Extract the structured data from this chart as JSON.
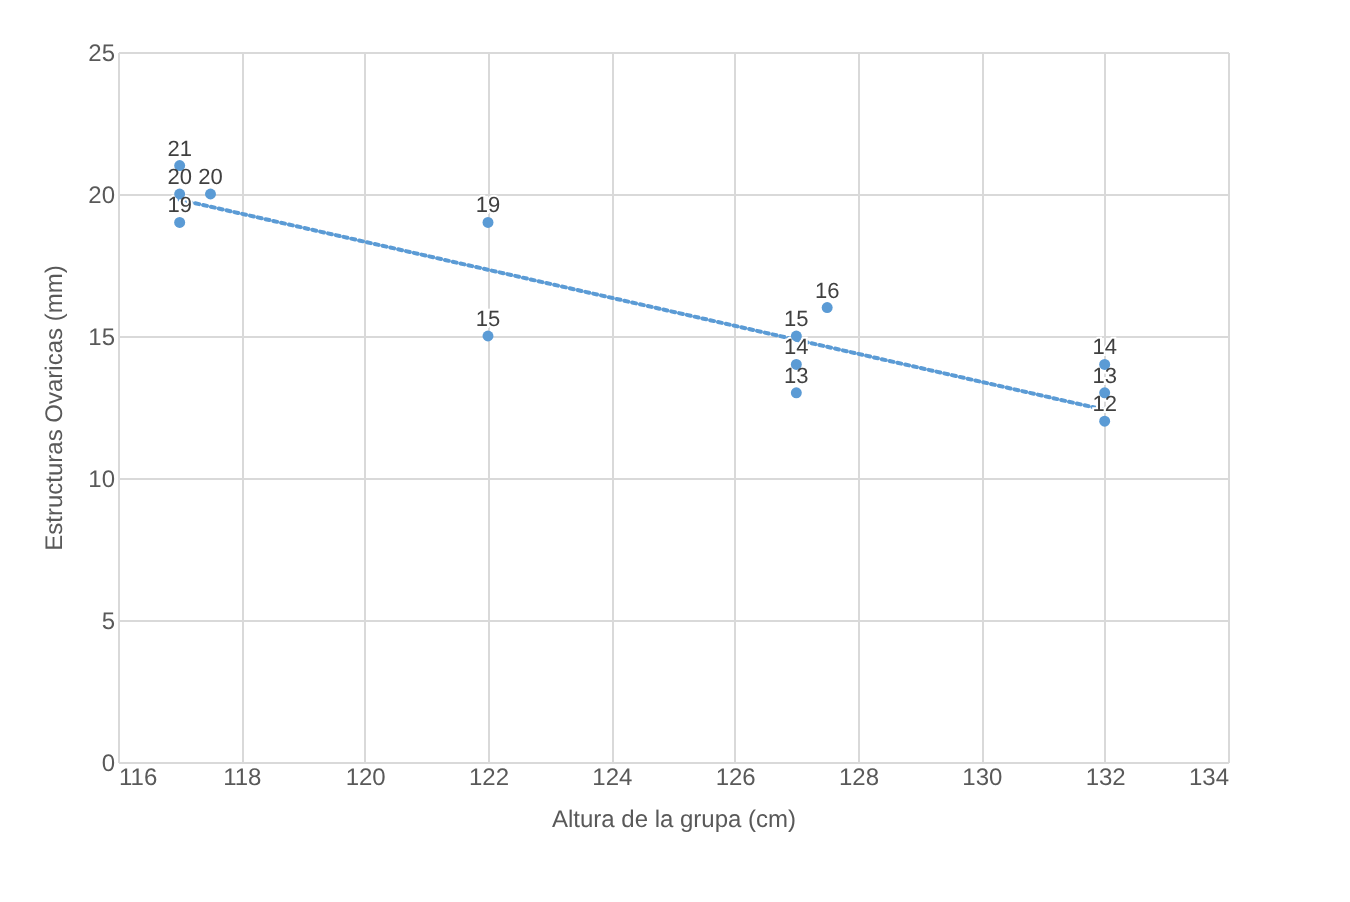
{
  "chart_data": {
    "type": "scatter",
    "xlabel": "Altura de  la grupa (cm)",
    "ylabel": "Estructuras Ovaricas (mm)",
    "xlim": [
      116,
      134
    ],
    "xticks": [
      116,
      118,
      120,
      122,
      124,
      126,
      128,
      130,
      132,
      134
    ],
    "ylim": [
      0,
      25
    ],
    "yticks": [
      0,
      5,
      10,
      15,
      20,
      25
    ],
    "grid": true,
    "series": [
      {
        "marker": "circle",
        "color": "#5b9bd5",
        "x": [
          117,
          117,
          117,
          117.5,
          122,
          122,
          127,
          127,
          127,
          127.5,
          132,
          132,
          132
        ],
        "values": [
          21,
          20,
          19,
          20,
          19,
          15,
          15,
          14,
          13,
          16,
          14,
          13,
          12
        ],
        "value_labels": [
          "21",
          "20",
          "19",
          "20",
          "19",
          "15",
          "15",
          "14",
          "13",
          "16",
          "14",
          "13",
          "12"
        ]
      },
      {
        "type": "line",
        "color": "#5b9bd5",
        "line_style": "dotted",
        "x": [
          117,
          132
        ],
        "values": [
          19.8,
          12.4
        ]
      }
    ]
  }
}
